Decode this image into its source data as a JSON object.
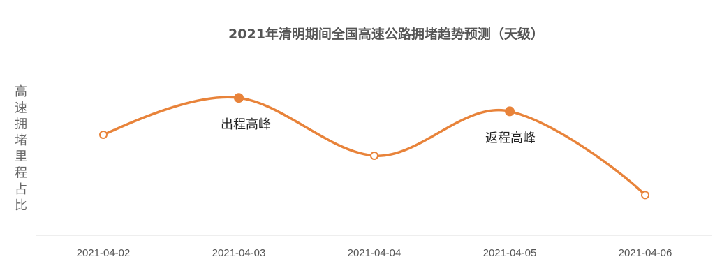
{
  "chart_data": {
    "type": "line",
    "title": "2021年清明期间全国高速公路拥堵趋势预测（天级）",
    "xlabel": "",
    "ylabel": "高速拥堵里程占比",
    "categories": [
      "2021-04-02",
      "2021-04-03",
      "2021-04-04",
      "2021-04-05",
      "2021-04-06"
    ],
    "values": [
      0.6,
      0.82,
      0.475,
      0.74,
      0.24
    ],
    "ylim": [
      0,
      1
    ],
    "smooth": true,
    "grid": false,
    "y_tick_labels_shown": false,
    "color": "#E8833A",
    "highlighted_points": [
      "2021-04-03",
      "2021-04-05"
    ],
    "annotations": [
      {
        "x": "2021-04-03",
        "text": "出程高峰"
      },
      {
        "x": "2021-04-05",
        "text": "返程高峰"
      }
    ]
  }
}
